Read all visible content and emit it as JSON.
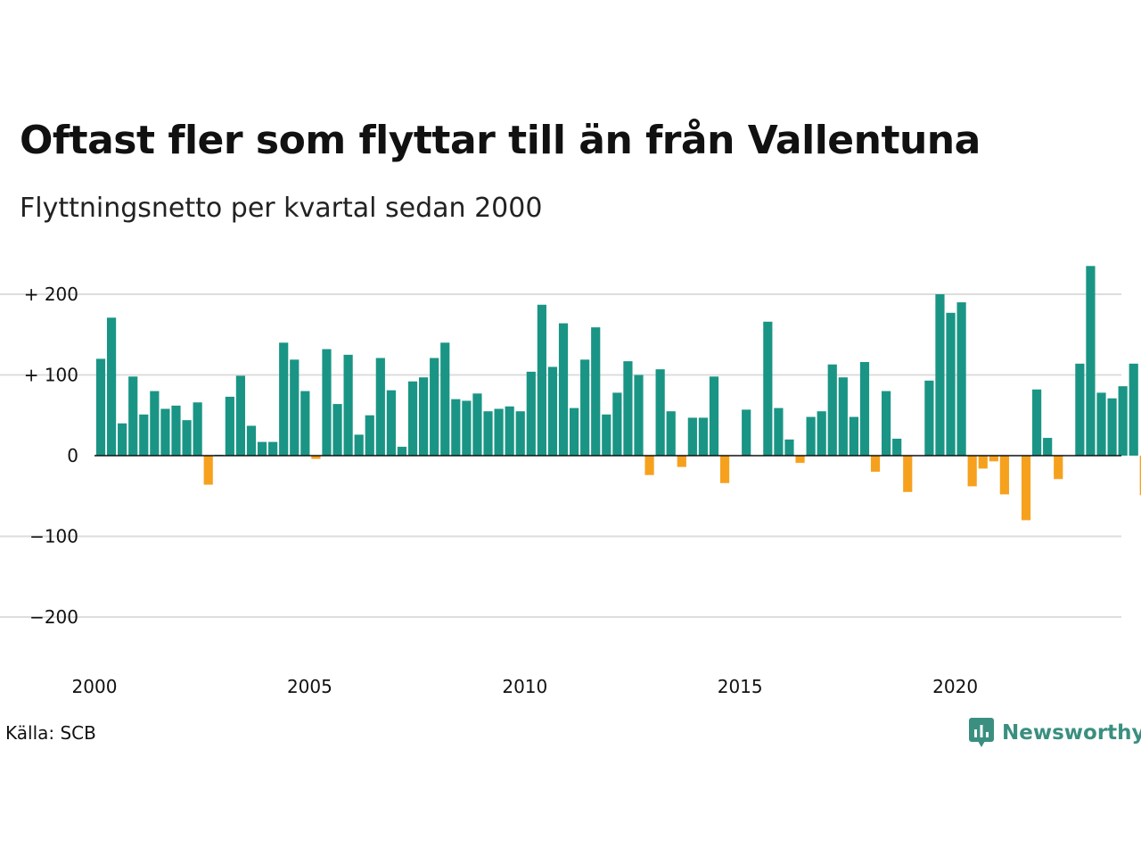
{
  "header": {
    "title": "Oftast fler som flyttar till än från Vallentuna",
    "subtitle": "Flyttningsnetto per kvartal sedan 2000"
  },
  "footer": {
    "source": "Källa: SCB",
    "brand": "Newsworthy"
  },
  "colors": {
    "positive": "#1a9585",
    "negative": "#f6a11e",
    "brand": "#3a8f80"
  },
  "chart_data": {
    "type": "bar",
    "title": "Oftast fler som flyttar till än från Vallentuna",
    "subtitle": "Flyttningsnetto per kvartal sedan 2000",
    "x_ticks": [
      "2000",
      "2005",
      "2010",
      "2015",
      "2020"
    ],
    "y_ticks": [
      {
        "value": 200,
        "label": "+ 200"
      },
      {
        "value": 100,
        "label": "+ 100"
      },
      {
        "value": 0,
        "label": "0"
      },
      {
        "value": -100,
        "label": "−100"
      },
      {
        "value": -200,
        "label": "−200"
      }
    ],
    "ylim": [
      -250,
      260
    ],
    "grid": true,
    "x_start_year": 2000,
    "x_end_year": 2023,
    "values": [
      120,
      171,
      40,
      98,
      51,
      80,
      58,
      62,
      44,
      66,
      -36,
      1,
      73,
      99,
      37,
      17,
      17,
      140,
      119,
      80,
      -4,
      132,
      64,
      125,
      26,
      50,
      121,
      81,
      11,
      92,
      97,
      121,
      140,
      70,
      68,
      77,
      55,
      58,
      61,
      55,
      104,
      187,
      110,
      164,
      59,
      119,
      159,
      51,
      78,
      117,
      100,
      -24,
      107,
      55,
      -14,
      47,
      47,
      98,
      -34,
      0,
      57,
      0,
      166,
      59,
      20,
      -9,
      48,
      55,
      113,
      97,
      48,
      116,
      -20,
      80,
      21,
      -45,
      0,
      93,
      200,
      177,
      190,
      -38,
      -16,
      -7,
      -48,
      0,
      -80,
      82,
      22,
      -29,
      0,
      114,
      235,
      78,
      71,
      86,
      114,
      -49
    ]
  }
}
